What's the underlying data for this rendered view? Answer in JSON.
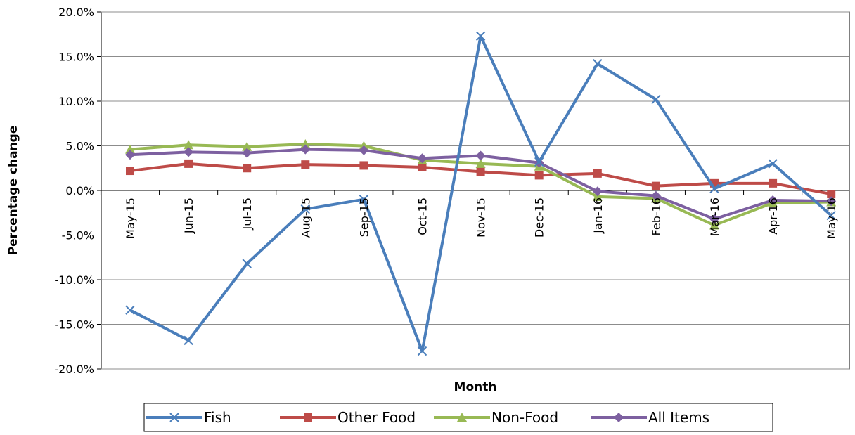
{
  "chart_data": {
    "type": "line",
    "title": "",
    "xlabel": "Month",
    "ylabel": "Percentage change",
    "ylim": [
      -20,
      20
    ],
    "ytick_step": 5,
    "ytick_labels": [
      "20.0%",
      "15.0%",
      "10.0%",
      "5.0%",
      "0.0%",
      "-5.0%",
      "-10.0%",
      "-15.0%",
      "-20.0%"
    ],
    "categories": [
      "May-15",
      "Jun-15",
      "Jul-15",
      "Aug-15",
      "Sep-15",
      "Oct-15",
      "Nov-15",
      "Dec-15",
      "Jan-16",
      "Feb-16",
      "Mar-16",
      "Apr-16",
      "May-16"
    ],
    "grid": true,
    "legend_position": "bottom",
    "series": [
      {
        "name": "Fish",
        "color": "#4a7ebb",
        "marker": "x",
        "values": [
          -13.4,
          -16.8,
          -8.2,
          -2.1,
          -1.0,
          -18.0,
          17.3,
          3.2,
          14.2,
          10.2,
          0.2,
          3.0,
          -2.8
        ]
      },
      {
        "name": "Other Food",
        "color": "#be4b48",
        "marker": "square",
        "values": [
          2.2,
          3.0,
          2.5,
          2.9,
          2.8,
          2.6,
          2.1,
          1.7,
          1.9,
          0.5,
          0.8,
          0.8,
          -0.4
        ]
      },
      {
        "name": "Non-Food",
        "color": "#98b954",
        "marker": "triangle",
        "values": [
          4.6,
          5.1,
          4.9,
          5.2,
          5.0,
          3.4,
          3.0,
          2.7,
          -0.7,
          -0.9,
          -3.9,
          -1.4,
          -1.3
        ]
      },
      {
        "name": "All Items",
        "color": "#7d60a0",
        "marker": "diamond",
        "values": [
          4.0,
          4.3,
          4.2,
          4.6,
          4.5,
          3.6,
          3.9,
          3.1,
          -0.1,
          -0.6,
          -3.2,
          -1.1,
          -1.2
        ]
      }
    ]
  }
}
